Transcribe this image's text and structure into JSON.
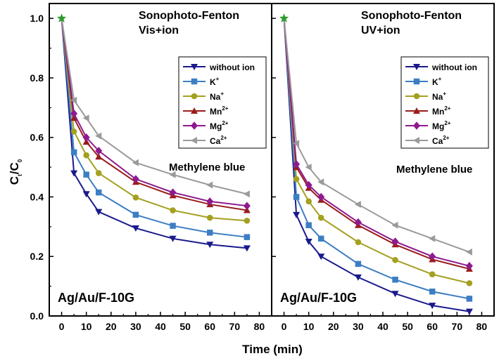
{
  "chart_data": {
    "type": "line",
    "xlabel": "Time (min)",
    "ylabel_main": "C",
    "ylabel_sub1": "t",
    "ylabel_sep": "/C",
    "ylabel_sub2": "0",
    "xlim": [
      -5,
      85
    ],
    "ylim": [
      0,
      1.05
    ],
    "xticks": [
      0,
      10,
      20,
      30,
      40,
      50,
      60,
      70,
      80
    ],
    "yticks": [
      0.0,
      0.2,
      0.4,
      0.6,
      0.8,
      1.0
    ],
    "x": [
      0,
      5,
      10,
      15,
      30,
      45,
      60,
      75
    ],
    "colors": {
      "without_ion": "#1a1a8c",
      "k": "#3c7ec3",
      "na": "#a4a020",
      "mn": "#9a1c1c",
      "mg": "#8e1a8e",
      "ca": "#9a9a9a",
      "start_marker": "#2e9b2e"
    },
    "panels": [
      {
        "title_line1": "Sonophoto-Fenton",
        "title_line2": "Vis+ion",
        "compound": "Methylene blue",
        "catalyst": "Ag/Au/F-10G",
        "series": [
          {
            "name": "without ion",
            "values": [
              1.0,
              0.48,
              0.41,
              0.35,
              0.295,
              0.26,
              0.24,
              0.228
            ]
          },
          {
            "name": "K+",
            "values": [
              1.0,
              0.55,
              0.475,
              0.415,
              0.34,
              0.303,
              0.28,
              0.265
            ]
          },
          {
            "name": "Na+",
            "values": [
              1.0,
              0.62,
              0.54,
              0.48,
              0.398,
              0.355,
              0.33,
              0.32
            ]
          },
          {
            "name": "Mn2+",
            "values": [
              1.0,
              0.665,
              0.585,
              0.535,
              0.45,
              0.405,
              0.375,
              0.355
            ]
          },
          {
            "name": "Mg2+",
            "values": [
              1.0,
              0.68,
              0.6,
              0.555,
              0.46,
              0.415,
              0.385,
              0.37
            ]
          },
          {
            "name": "Ca2+",
            "values": [
              1.0,
              0.725,
              0.665,
              0.605,
              0.515,
              0.475,
              0.44,
              0.41
            ]
          }
        ]
      },
      {
        "title_line1": "Sonophoto-Fenton",
        "title_line2": "UV+ion",
        "compound": "Methylene blue",
        "catalyst": "Ag/Au/F-10G",
        "series": [
          {
            "name": "without ion",
            "values": [
              1.0,
              0.34,
              0.25,
              0.2,
              0.13,
              0.075,
              0.035,
              0.015
            ]
          },
          {
            "name": "K+",
            "values": [
              1.0,
              0.4,
              0.305,
              0.26,
              0.175,
              0.122,
              0.082,
              0.058
            ]
          },
          {
            "name": "Na+",
            "values": [
              1.0,
              0.46,
              0.385,
              0.33,
              0.248,
              0.188,
              0.14,
              0.11
            ]
          },
          {
            "name": "Mn2+",
            "values": [
              1.0,
              0.5,
              0.43,
              0.39,
              0.305,
              0.24,
              0.19,
              0.158
            ]
          },
          {
            "name": "Mg2+",
            "values": [
              1.0,
              0.51,
              0.44,
              0.4,
              0.315,
              0.25,
              0.2,
              0.168
            ]
          },
          {
            "name": "Ca2+",
            "values": [
              1.0,
              0.58,
              0.5,
              0.45,
              0.375,
              0.305,
              0.26,
              0.215
            ]
          }
        ]
      }
    ],
    "legend": [
      {
        "base": "without ion",
        "sup": "",
        "marker": "triangle-down",
        "color_key": "without_ion"
      },
      {
        "base": "K",
        "sup": "+",
        "marker": "square",
        "color_key": "k"
      },
      {
        "base": "Na",
        "sup": "+",
        "marker": "circle",
        "color_key": "na"
      },
      {
        "base": "Mn",
        "sup": "2+",
        "marker": "triangle-up",
        "color_key": "mn"
      },
      {
        "base": "Mg",
        "sup": "2+",
        "marker": "diamond",
        "color_key": "mg"
      },
      {
        "base": "Ca",
        "sup": "2+",
        "marker": "triangle-left",
        "color_key": "ca"
      }
    ]
  }
}
